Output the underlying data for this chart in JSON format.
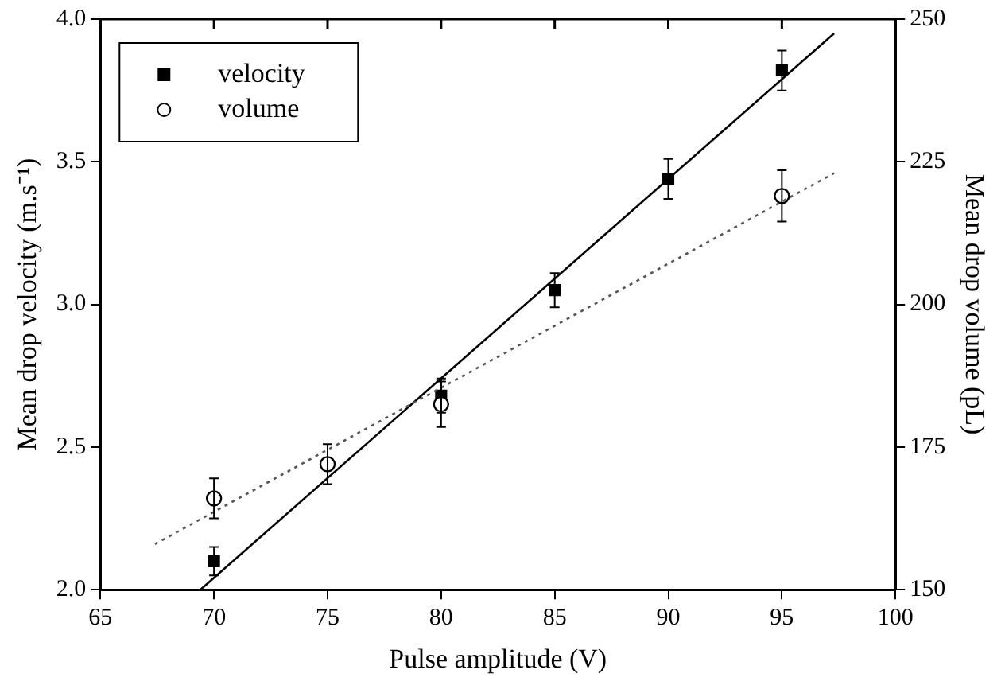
{
  "chart_data": {
    "type": "scatter",
    "xlabel": "Pulse amplitude (V)",
    "ylabel": "Mean drop velocity (m.s⁻¹)",
    "y2label": "Mean drop volume (pL)",
    "xlim": [
      65,
      100
    ],
    "xticks": [
      65,
      70,
      75,
      80,
      85,
      90,
      95,
      100
    ],
    "ylim": [
      2.0,
      4.0
    ],
    "yticks": [
      {
        "value": 2.0,
        "label": "2.0"
      },
      {
        "value": 2.5,
        "label": "2.5"
      },
      {
        "value": 3.0,
        "label": "3.0"
      },
      {
        "value": 3.5,
        "label": "3.5"
      },
      {
        "value": 4.0,
        "label": "4.0"
      }
    ],
    "y2lim": [
      150,
      250
    ],
    "y2ticks": [
      150,
      175,
      200,
      225,
      250
    ],
    "grid": false,
    "legend": "top left",
    "series": [
      {
        "name": "velocity",
        "color": "#000000",
        "marker": "square",
        "x": [
          70,
          75,
          80,
          85,
          90,
          95
        ],
        "values": [
          2.1,
          null,
          2.68,
          3.05,
          3.44,
          3.82
        ],
        "errors": [
          0.05,
          null,
          0.06,
          0.06,
          0.07,
          0.07
        ]
      },
      {
        "name": "volume",
        "color": "#000000",
        "marker": "circle",
        "axis": "y2",
        "x": [
          70,
          75,
          80,
          95
        ],
        "values": [
          166,
          172,
          182.5,
          219
        ],
        "errors": [
          3.5,
          3.5,
          4,
          4.5
        ]
      },
      {
        "type": "line",
        "color": "#000000",
        "line_style": "solid",
        "marker": "none",
        "x": [
          69.4,
          97.3
        ],
        "values": [
          2.0,
          3.95
        ]
      },
      {
        "type": "line",
        "color": "#555555",
        "line_style": "dotted",
        "marker": "none",
        "axis": "y2",
        "x": [
          67.4,
          97.3
        ],
        "values": [
          158,
          223
        ]
      }
    ]
  }
}
